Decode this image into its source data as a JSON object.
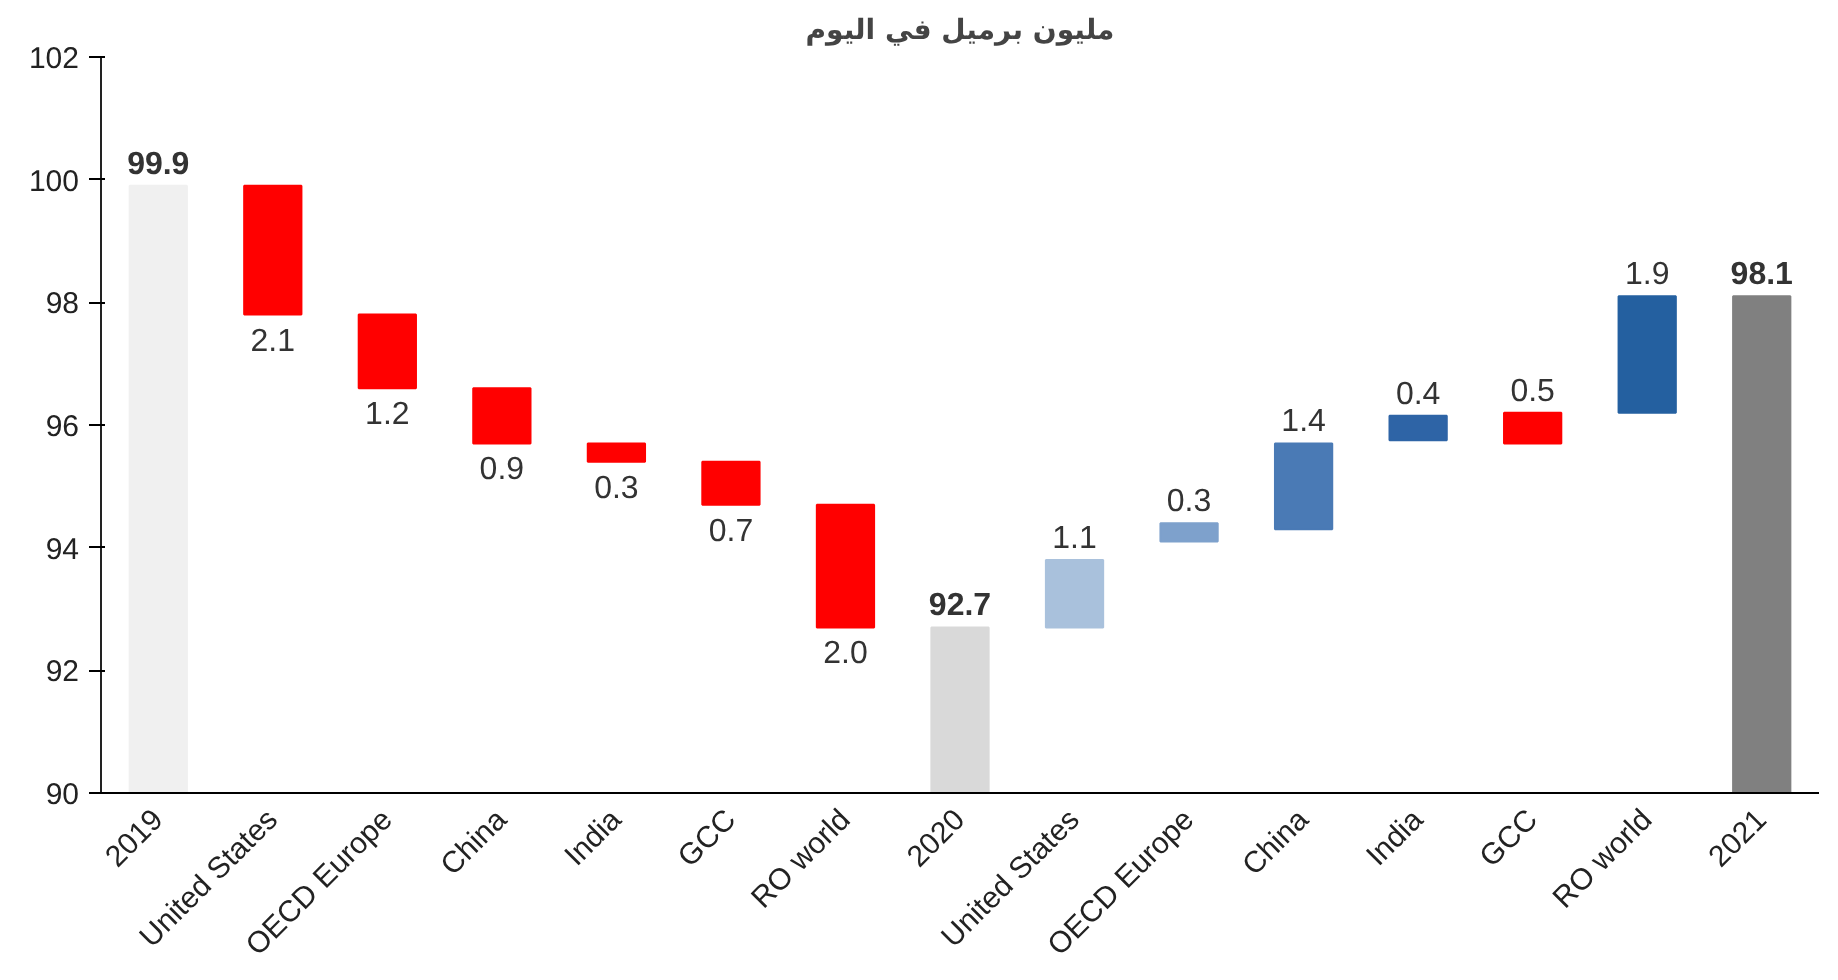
{
  "chart_data": {
    "type": "bar",
    "title": "مليون برميل في اليوم",
    "categories": [
      "2019",
      "United States",
      "OECD Europe",
      "China",
      "India",
      "GCC",
      "RO world",
      "2020",
      "United States",
      "OECD Europe",
      "China",
      "India",
      "GCC",
      "RO world",
      "2021"
    ],
    "base": [
      90,
      97.8,
      96.6,
      95.7,
      95.4,
      94.7,
      92.7,
      90,
      92.7,
      94.1,
      94.3,
      95.75,
      95.7,
      96.2,
      90
    ],
    "values": [
      9.9,
      2.1,
      1.2,
      0.9,
      0.3,
      0.7,
      2.0,
      2.7,
      1.1,
      0.3,
      1.4,
      0.4,
      0.5,
      1.9,
      8.1
    ],
    "value_labels": [
      "99.9",
      "2.1",
      "1.2",
      "0.9",
      "0.3",
      "0.7",
      "2.0",
      "92.7",
      "1.1",
      "0.3",
      "1.4",
      "0.4",
      "0.5",
      "1.9",
      "98.1"
    ],
    "colors": [
      "#f0f0f0",
      "#ff0000",
      "#ff0000",
      "#ff0000",
      "#ff0000",
      "#ff0000",
      "#ff0000",
      "#d9d9d9",
      "#a9c1dc",
      "#7ea1cc",
      "#4a7ab5",
      "#2e64a6",
      "#ff0000",
      "#2460a0",
      "#808080"
    ],
    "ylim": [
      90,
      102
    ],
    "yticks": [
      90,
      92,
      94,
      96,
      98,
      100,
      102
    ],
    "grid": false
  }
}
